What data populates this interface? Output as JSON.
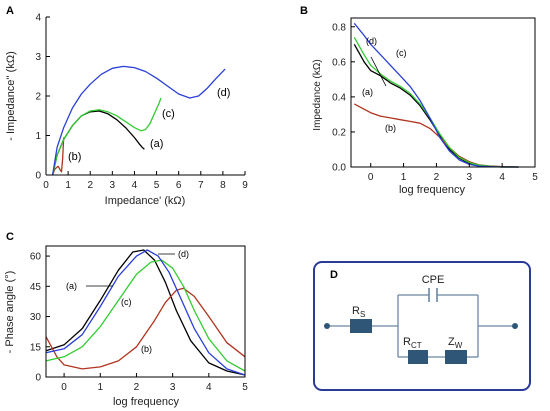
{
  "chart_data": [
    {
      "panel": "A",
      "type": "line",
      "xlabel": "Impedance' (kΩ)",
      "ylabel": "- Impedance'' (kΩ)",
      "xlim": [
        0,
        9
      ],
      "ylim": [
        0,
        4
      ],
      "xticks": [
        0,
        1,
        2,
        3,
        4,
        5,
        6,
        7,
        8,
        9
      ],
      "yticks": [
        0,
        1,
        2,
        3,
        4
      ],
      "series": [
        {
          "label": "(a)",
          "color": "#000000",
          "x": [
            0.3,
            0.5,
            0.8,
            1.2,
            1.6,
            2.0,
            2.4,
            2.8,
            3.2,
            3.6,
            4.0,
            4.2,
            4.35,
            4.45
          ],
          "y": [
            0.0,
            0.5,
            0.9,
            1.25,
            1.5,
            1.6,
            1.62,
            1.55,
            1.4,
            1.2,
            0.95,
            0.8,
            0.7,
            0.65
          ]
        },
        {
          "label": "(b)",
          "color": "#b0341e",
          "x": [
            0.3,
            0.4,
            0.55,
            0.65,
            0.7,
            0.75,
            0.8
          ],
          "y": [
            0.0,
            0.15,
            0.22,
            0.12,
            0.08,
            0.4,
            0.95
          ]
        },
        {
          "label": "(c)",
          "color": "#33cc33",
          "x": [
            0.3,
            0.5,
            0.8,
            1.2,
            1.6,
            2.0,
            2.4,
            2.8,
            3.2,
            3.6,
            4.0,
            4.3,
            4.5,
            4.7,
            4.9,
            5.1,
            5.2
          ],
          "y": [
            0.0,
            0.5,
            0.9,
            1.25,
            1.5,
            1.62,
            1.65,
            1.6,
            1.5,
            1.35,
            1.2,
            1.12,
            1.15,
            1.3,
            1.55,
            1.8,
            1.95
          ]
        },
        {
          "label": "(d)",
          "color": "#2a3fd8",
          "x": [
            0.3,
            0.5,
            0.8,
            1.2,
            1.6,
            2.0,
            2.5,
            3.0,
            3.5,
            4.0,
            4.5,
            5.0,
            5.5,
            6.0,
            6.5,
            6.9,
            7.3,
            7.7,
            8.1
          ],
          "y": [
            0.0,
            0.7,
            1.2,
            1.7,
            2.05,
            2.3,
            2.55,
            2.7,
            2.75,
            2.72,
            2.62,
            2.45,
            2.25,
            2.05,
            1.95,
            2.0,
            2.2,
            2.45,
            2.68
          ]
        }
      ]
    },
    {
      "panel": "B",
      "type": "line",
      "xlabel": "log frequency",
      "ylabel": "Impedance (kΩ)",
      "xlim": [
        -0.6,
        5
      ],
      "ylim": [
        0,
        0.85
      ],
      "xticks": [
        0,
        1,
        2,
        3,
        4,
        5
      ],
      "yticks": [
        0.0,
        0.2,
        0.4,
        0.6,
        0.8
      ],
      "series": [
        {
          "label": "(a)",
          "color": "#000000",
          "x": [
            -0.5,
            -0.2,
            0.0,
            0.3,
            0.6,
            0.9,
            1.2,
            1.5,
            1.8,
            2.1,
            2.4,
            2.7,
            3.0,
            3.3,
            3.6,
            4.0,
            4.5
          ],
          "y": [
            0.7,
            0.6,
            0.55,
            0.52,
            0.48,
            0.45,
            0.41,
            0.35,
            0.27,
            0.18,
            0.1,
            0.05,
            0.02,
            0.01,
            0.005,
            0.0,
            0.0
          ]
        },
        {
          "label": "(b)",
          "color": "#b0341e",
          "x": [
            -0.5,
            -0.2,
            0.0,
            0.3,
            0.6,
            0.9,
            1.2,
            1.5,
            1.8,
            2.1,
            2.4,
            2.7,
            3.0,
            3.3,
            3.6,
            4.0,
            4.5
          ],
          "y": [
            0.36,
            0.33,
            0.31,
            0.29,
            0.28,
            0.27,
            0.26,
            0.25,
            0.22,
            0.17,
            0.11,
            0.06,
            0.03,
            0.012,
            0.006,
            0.002,
            0.0
          ]
        },
        {
          "label": "(c)",
          "color": "#33cc33",
          "x": [
            -0.5,
            -0.2,
            0.0,
            0.3,
            0.6,
            0.9,
            1.2,
            1.5,
            1.8,
            2.1,
            2.4,
            2.7,
            3.0,
            3.3,
            3.6,
            4.0,
            4.5
          ],
          "y": [
            0.74,
            0.64,
            0.58,
            0.53,
            0.49,
            0.46,
            0.42,
            0.36,
            0.28,
            0.19,
            0.11,
            0.055,
            0.025,
            0.01,
            0.005,
            0.0,
            0.0
          ]
        },
        {
          "label": "(d)",
          "color": "#2a3fd8",
          "x": [
            -0.5,
            -0.2,
            0.0,
            0.3,
            0.6,
            0.9,
            1.2,
            1.5,
            1.8,
            2.1,
            2.4,
            2.7,
            3.0,
            3.3,
            3.6,
            4.0,
            4.5
          ],
          "y": [
            0.82,
            0.75,
            0.7,
            0.64,
            0.58,
            0.52,
            0.46,
            0.38,
            0.28,
            0.17,
            0.09,
            0.04,
            0.015,
            0.005,
            0.002,
            0.0,
            0.0
          ]
        }
      ]
    },
    {
      "panel": "C",
      "type": "line",
      "xlabel": "log frequency",
      "ylabel": "- Phase angle (°)",
      "xlim": [
        -0.5,
        5
      ],
      "ylim": [
        0,
        65
      ],
      "xticks": [
        0,
        1,
        2,
        3,
        4,
        5
      ],
      "yticks": [
        0,
        15,
        30,
        45,
        60
      ],
      "series": [
        {
          "label": "(a)",
          "color": "#000000",
          "x": [
            -0.5,
            0.0,
            0.5,
            1.0,
            1.5,
            1.9,
            2.2,
            2.5,
            2.8,
            3.1,
            3.5,
            4.0,
            4.5,
            5.0
          ],
          "y": [
            13,
            16,
            24,
            38,
            53,
            62,
            63,
            58,
            47,
            33,
            18,
            7,
            3,
            1
          ]
        },
        {
          "label": "(b)",
          "color": "#b0341e",
          "x": [
            -0.5,
            -0.2,
            0.0,
            0.5,
            1.0,
            1.5,
            2.0,
            2.5,
            2.8,
            3.1,
            3.3,
            3.6,
            4.0,
            4.5,
            5.0
          ],
          "y": [
            20,
            10,
            6,
            4,
            5,
            8,
            15,
            28,
            37,
            43,
            44,
            40,
            30,
            17,
            10
          ]
        },
        {
          "label": "(c)",
          "color": "#33cc33",
          "x": [
            -0.5,
            0.0,
            0.5,
            1.0,
            1.5,
            2.0,
            2.4,
            2.7,
            3.0,
            3.3,
            3.6,
            4.0,
            4.5,
            5.0
          ],
          "y": [
            8,
            10,
            15,
            25,
            38,
            51,
            57,
            58,
            54,
            45,
            33,
            19,
            8,
            3
          ]
        },
        {
          "label": "(d)",
          "color": "#2a3fd8",
          "x": [
            -0.5,
            0.0,
            0.5,
            1.0,
            1.5,
            2.0,
            2.3,
            2.6,
            2.9,
            3.2,
            3.6,
            4.0,
            4.5,
            5.0
          ],
          "y": [
            12,
            14,
            21,
            35,
            50,
            60,
            63,
            60,
            52,
            40,
            24,
            12,
            4,
            1
          ]
        }
      ]
    }
  ],
  "panel_labels": [
    "A",
    "B",
    "C",
    "D"
  ],
  "annotations": {
    "A": [
      "(a)",
      "(b)",
      "(c)",
      "(d)"
    ],
    "B": [
      "(d)",
      "(c)",
      "(a)",
      "(b)"
    ],
    "C": [
      "(a)",
      "(c)",
      "(d)",
      "(b)"
    ]
  },
  "circuit": {
    "cpe": "CPE",
    "rs": {
      "main": "R",
      "sub": "S"
    },
    "rct": {
      "main": "R",
      "sub": "CT"
    },
    "zw": {
      "main": "Z",
      "sub": "W"
    },
    "border_color": "#2a3a9a",
    "element_color": "#2f5577",
    "wire_color": "#6a86a0"
  }
}
